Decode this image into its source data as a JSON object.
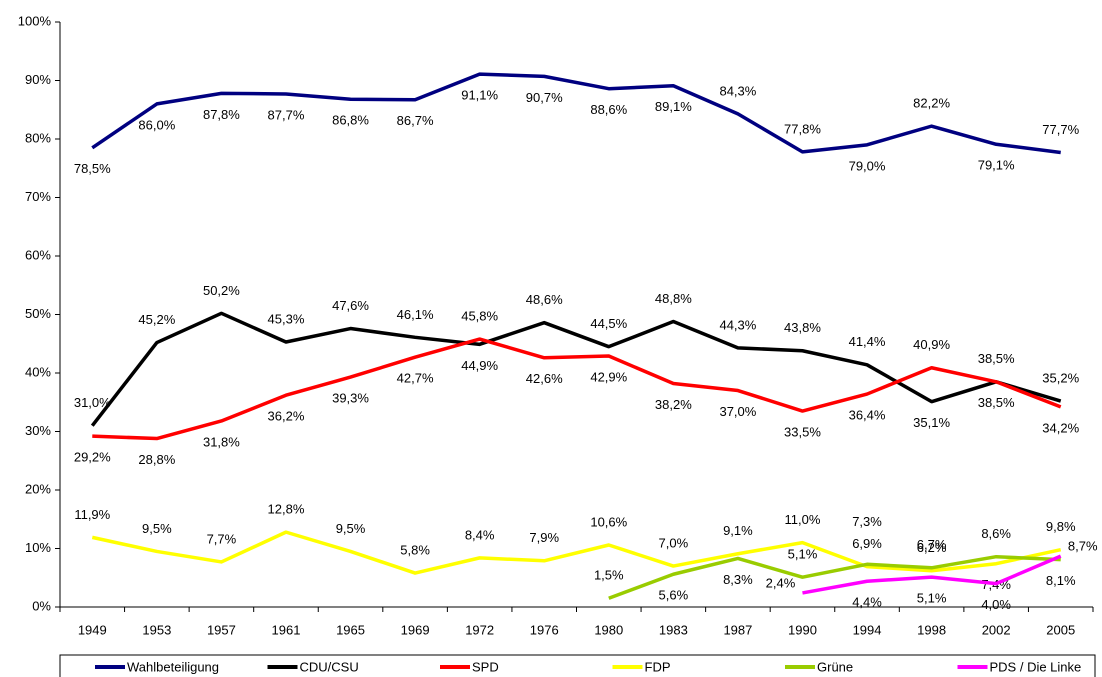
{
  "chart_data": {
    "type": "line",
    "categories": [
      "1949",
      "1953",
      "1957",
      "1961",
      "1965",
      "1969",
      "1972",
      "1976",
      "1980",
      "1983",
      "1987",
      "1990",
      "1994",
      "1998",
      "2002",
      "2005"
    ],
    "series": [
      {
        "name": "Wahlbeteiligung",
        "color": "#000080",
        "values": [
          78.5,
          86.0,
          87.8,
          87.7,
          86.8,
          86.7,
          91.1,
          90.7,
          88.6,
          89.1,
          84.3,
          77.8,
          79.0,
          82.2,
          79.1,
          77.7
        ],
        "value_labels": [
          "78,5%",
          "86,0%",
          "87,8%",
          "87,7%",
          "86,8%",
          "86,7%",
          "91,1%",
          "90,7%",
          "88,6%",
          "89,1%",
          "84,3%",
          "77,8%",
          "79,0%",
          "82,2%",
          "79,1%",
          "77,7%"
        ]
      },
      {
        "name": "CDU/CSU",
        "color": "#000000",
        "values": [
          31.0,
          45.2,
          50.2,
          45.3,
          47.6,
          46.1,
          44.9,
          48.6,
          44.5,
          48.8,
          44.3,
          43.8,
          41.4,
          35.1,
          38.5,
          35.2
        ],
        "value_labels": [
          "31,0%",
          "45,2%",
          "50,2%",
          "45,3%",
          "47,6%",
          "46,1%",
          "44,9%",
          "48,6%",
          "44,5%",
          "48,8%",
          "44,3%",
          "43,8%",
          "41,4%",
          "35,1%",
          "38,5%",
          "35,2%"
        ]
      },
      {
        "name": "SPD",
        "color": "#ff0000",
        "values": [
          29.2,
          28.8,
          31.8,
          36.2,
          39.3,
          42.7,
          45.8,
          42.6,
          42.9,
          38.2,
          37.0,
          33.5,
          36.4,
          40.9,
          38.5,
          34.2
        ],
        "value_labels": [
          "29,2%",
          "28,8%",
          "31,8%",
          "36,2%",
          "39,3%",
          "42,7%",
          "45,8%",
          "42,6%",
          "42,9%",
          "38,2%",
          "37,0%",
          "33,5%",
          "36,4%",
          "40,9%",
          "38,5%",
          "34,2%"
        ]
      },
      {
        "name": "FDP",
        "color": "#ffff00",
        "values": [
          11.9,
          9.5,
          7.7,
          12.8,
          9.5,
          5.8,
          8.4,
          7.9,
          10.6,
          7.0,
          9.1,
          11.0,
          6.9,
          6.2,
          7.4,
          9.8
        ],
        "value_labels": [
          "11,9%",
          "9,5%",
          "7,7%",
          "12,8%",
          "9,5%",
          "5,8%",
          "8,4%",
          "7,9%",
          "10,6%",
          "7,0%",
          "9,1%",
          "11,0%",
          "6,9%",
          "6,2%",
          "7,4%",
          "9,8%"
        ]
      },
      {
        "name": "Grüne",
        "color": "#99cc00",
        "values": [
          null,
          null,
          null,
          null,
          null,
          null,
          null,
          null,
          1.5,
          5.6,
          8.3,
          5.1,
          7.3,
          6.7,
          8.6,
          8.1
        ],
        "value_labels": [
          null,
          null,
          null,
          null,
          null,
          null,
          null,
          null,
          "1,5%",
          "5,6%",
          "8,3%",
          "5,1%",
          "7,3%",
          "6,7%",
          "8,6%",
          "8,1%"
        ]
      },
      {
        "name": "PDS / Die Linke",
        "color": "#ff00ff",
        "values": [
          null,
          null,
          null,
          null,
          null,
          null,
          null,
          null,
          null,
          null,
          null,
          2.4,
          4.4,
          5.1,
          4.0,
          8.7
        ],
        "value_labels": [
          null,
          null,
          null,
          null,
          null,
          null,
          null,
          null,
          null,
          null,
          null,
          "2,4%",
          "4,4%",
          "5,1%",
          "4,0%",
          "8,7%"
        ]
      }
    ],
    "ylim": [
      0,
      100
    ],
    "yticks": [
      {
        "value": 0,
        "label": "0%"
      },
      {
        "value": 10,
        "label": "10%"
      },
      {
        "value": 20,
        "label": "20%"
      },
      {
        "value": 30,
        "label": "30%"
      },
      {
        "value": 40,
        "label": "40%"
      },
      {
        "value": 50,
        "label": "50%"
      },
      {
        "value": 60,
        "label": "60%"
      },
      {
        "value": 70,
        "label": "70%"
      },
      {
        "value": 80,
        "label": "80%"
      },
      {
        "value": 90,
        "label": "90%"
      },
      {
        "value": 100,
        "label": "100%"
      }
    ],
    "grid": false,
    "legend": "bottom"
  }
}
